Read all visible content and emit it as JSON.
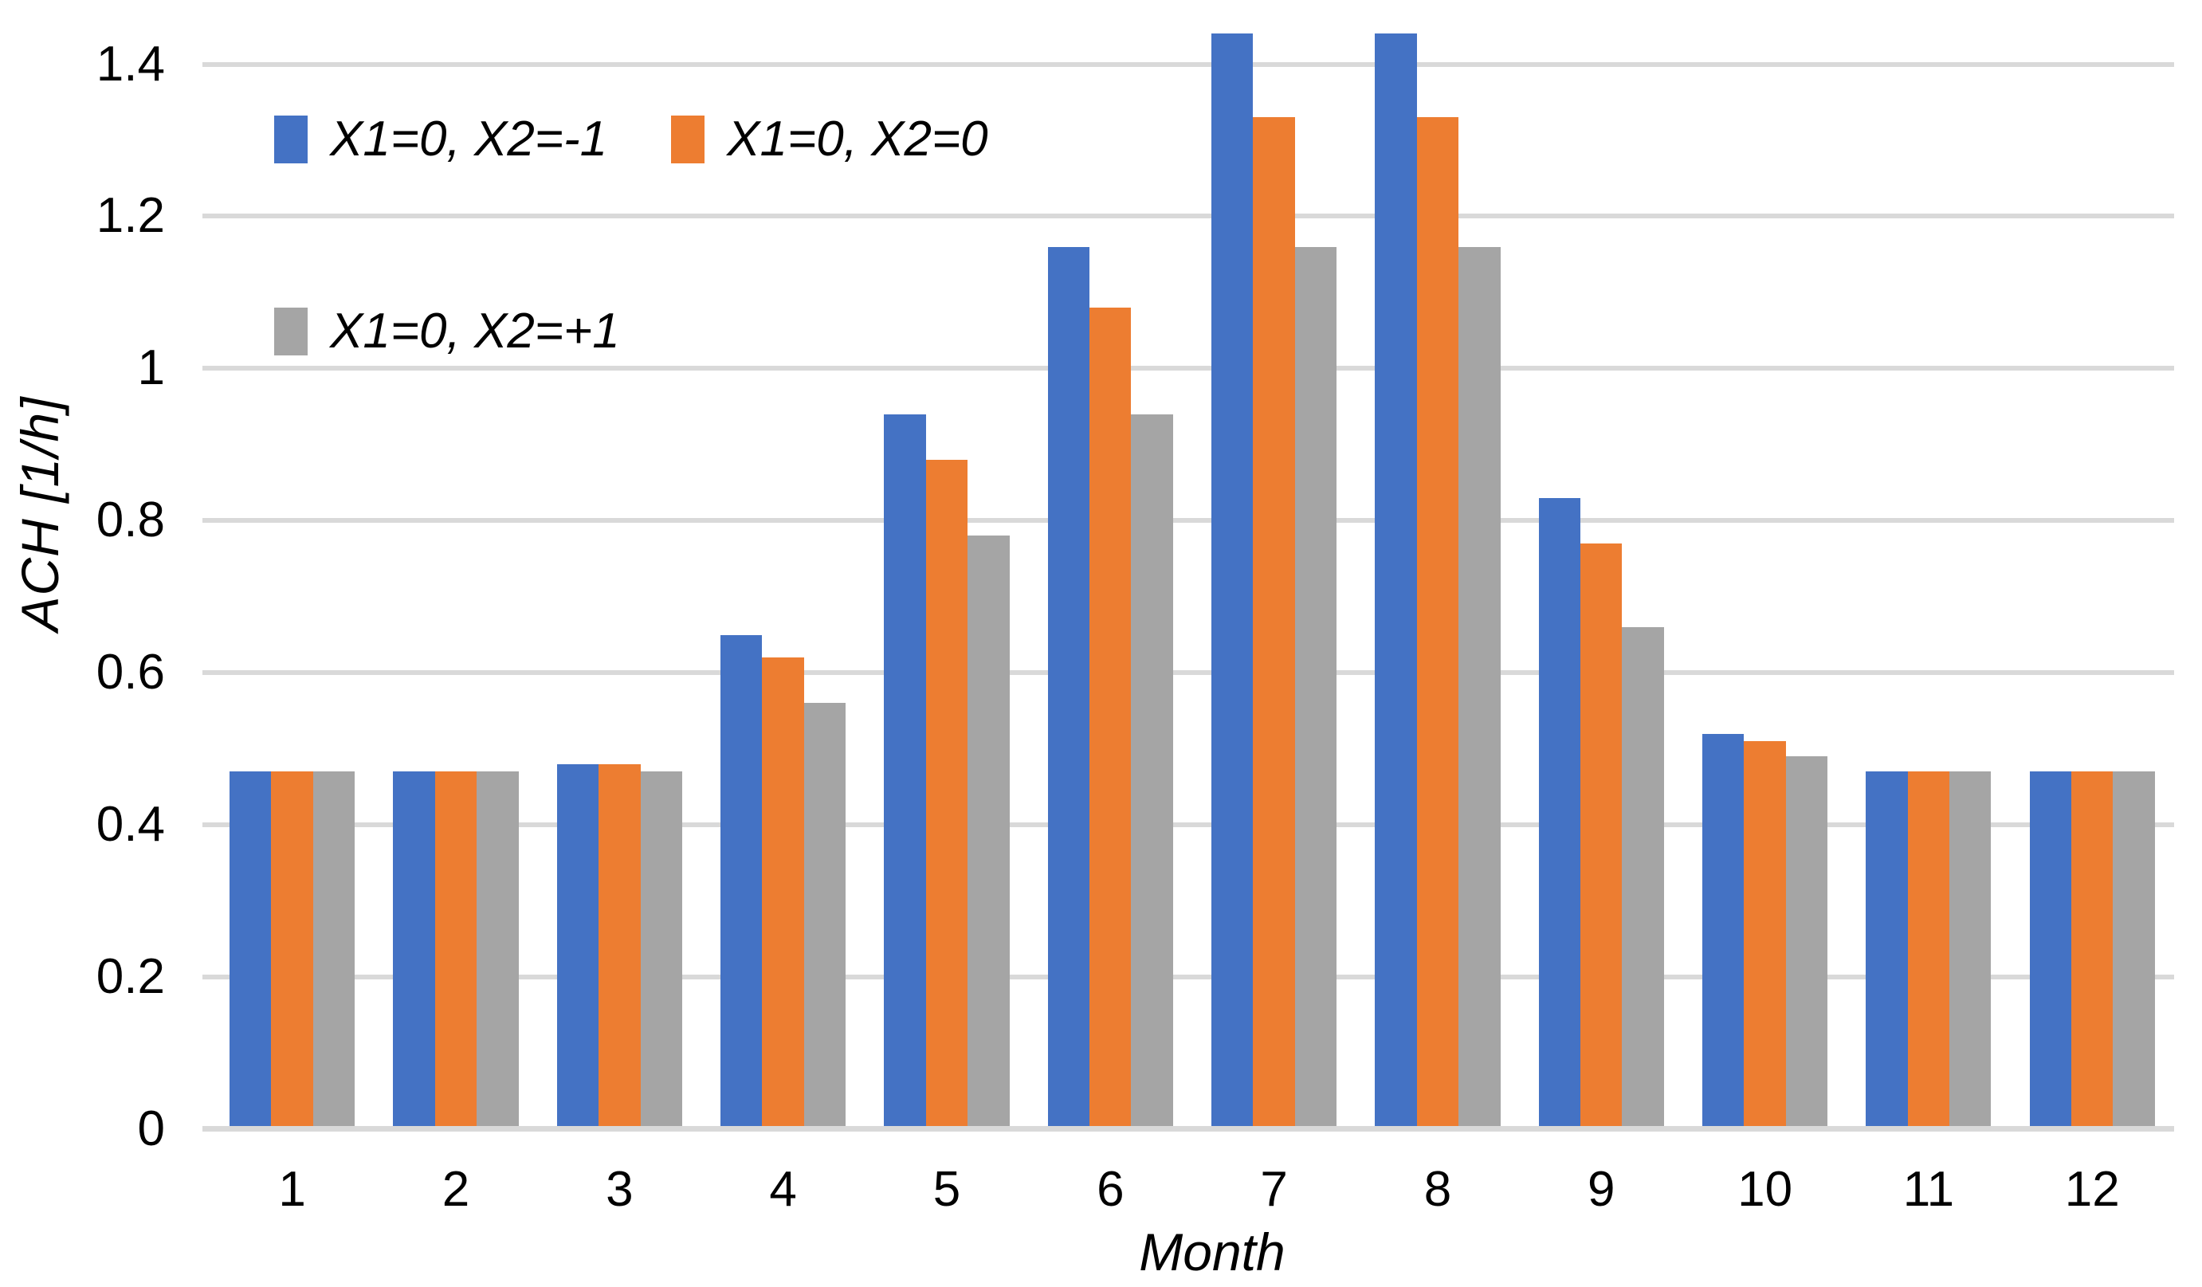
{
  "chart_data": {
    "type": "bar",
    "title": "",
    "xlabel": "Month",
    "ylabel": "ACH [1/h]",
    "categories": [
      "1",
      "2",
      "3",
      "4",
      "5",
      "6",
      "7",
      "8",
      "9",
      "10",
      "11",
      "12"
    ],
    "series": [
      {
        "name": "X1=0, X2=-1",
        "color": "#4472C4",
        "values": [
          0.47,
          0.47,
          0.48,
          0.65,
          0.94,
          1.16,
          1.44,
          1.44,
          0.83,
          0.52,
          0.47,
          0.47
        ]
      },
      {
        "name": "X1=0, X2=0",
        "color": "#ED7D31",
        "values": [
          0.47,
          0.47,
          0.48,
          0.62,
          0.88,
          1.08,
          1.33,
          1.33,
          0.77,
          0.51,
          0.47,
          0.47
        ]
      },
      {
        "name": "X1=0, X2=+1",
        "color": "#A5A5A5",
        "values": [
          0.47,
          0.47,
          0.47,
          0.56,
          0.78,
          0.94,
          1.16,
          1.16,
          0.66,
          0.49,
          0.47,
          0.47
        ]
      }
    ],
    "y_ticks": [
      {
        "value": 0,
        "label": "0"
      },
      {
        "value": 0.2,
        "label": "0.2"
      },
      {
        "value": 0.4,
        "label": "0.4"
      },
      {
        "value": 0.6,
        "label": "0.6"
      },
      {
        "value": 0.8,
        "label": "0.8"
      },
      {
        "value": 1,
        "label": "1"
      },
      {
        "value": 1.2,
        "label": "1.2"
      },
      {
        "value": 1.4,
        "label": "1.4"
      }
    ],
    "ylim": [
      0,
      1.455
    ],
    "grid": "horizontal",
    "legend_position": "inside-top-left",
    "legend_rows": [
      [
        "X1=0, X2=-1",
        "X1=0, X2=0"
      ],
      [
        "X1=0, X2=+1"
      ]
    ],
    "colors": {
      "gridline": "#D9D9D9",
      "axis_line": "#D9D9D9",
      "text": "#000000",
      "background": "#FFFFFF"
    }
  }
}
